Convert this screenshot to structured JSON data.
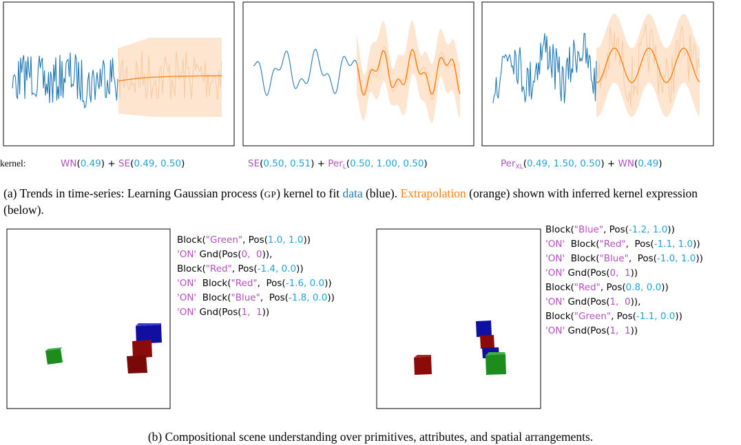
{
  "panel_a": {
    "kernel_label": "kernel:",
    "expressions": [
      [
        {
          "text": "WN",
          "color": "#b44fbf"
        },
        {
          "text": "(",
          "color": "#000000"
        },
        {
          "text": "0.49",
          "color": "#1fa3d8"
        },
        {
          "text": ") + ",
          "color": "#000000"
        },
        {
          "text": "SE",
          "color": "#b44fbf"
        },
        {
          "text": "(",
          "color": "#000000"
        },
        {
          "text": "0.49, 0.50",
          "color": "#1fa3d8"
        },
        {
          "text": ")",
          "color": "#000000"
        }
      ],
      [
        {
          "text": "SE",
          "color": "#b44fbf"
        },
        {
          "text": "(",
          "color": "#000000"
        },
        {
          "text": "0.50, 0.51",
          "color": "#1fa3d8"
        },
        {
          "text": ") + ",
          "color": "#000000"
        },
        {
          "text": "Per",
          "color": "#b44fbf"
        },
        {
          "text": "L",
          "color": "#b44fbf",
          "sub": true
        },
        {
          "text": "(",
          "color": "#000000"
        },
        {
          "text": "0.50, 1.00, 0.50",
          "color": "#1fa3d8"
        },
        {
          "text": ")",
          "color": "#000000"
        }
      ],
      [
        {
          "text": "Per",
          "color": "#b44fbf"
        },
        {
          "text": "XL",
          "color": "#b44fbf",
          "sub": true
        },
        {
          "text": "(",
          "color": "#000000"
        },
        {
          "text": "0.49, 1.50, 0.50",
          "color": "#1fa3d8"
        },
        {
          "text": ") + ",
          "color": "#000000"
        },
        {
          "text": "WN",
          "color": "#b44fbf"
        },
        {
          "text": "(",
          "color": "#000000"
        },
        {
          "text": "0.49",
          "color": "#1fa3d8"
        },
        {
          "text": ")",
          "color": "#000000"
        }
      ]
    ],
    "caption": [
      {
        "text": "(a) Trends in time-series: Learning Gaussian process (",
        "color": "#000000"
      },
      {
        "text": "GP",
        "color": "#000000",
        "small": true
      },
      {
        "text": ") kernel to fit ",
        "color": "#000000"
      },
      {
        "text": "data",
        "color": "#1f77b4"
      },
      {
        "text": " (blue). ",
        "color": "#000000"
      },
      {
        "text": "Extrapolation",
        "color": "#ff7f0e"
      },
      {
        "text": " (orange) shown with inferred kernel expression (below).",
        "color": "#000000"
      }
    ]
  },
  "panel_b": {
    "programs": [
      [
        [
          {
            "text": "Block(",
            "color": "#000000"
          },
          {
            "text": "\"Green\"",
            "color": "#b44fbf"
          },
          {
            "text": ", Pos(",
            "color": "#000000"
          },
          {
            "text": "1.0, 1.0",
            "color": "#1fa3d8"
          },
          {
            "text": "))",
            "color": "#000000"
          }
        ],
        [
          {
            "text": "'ON'",
            "color": "#b44fbf"
          },
          {
            "text": " Gnd(Pos(",
            "color": "#000000"
          },
          {
            "text": "0,  0",
            "color": "#b44fbf"
          },
          {
            "text": ")),",
            "color": "#000000"
          }
        ],
        [
          {
            "text": "Block(",
            "color": "#000000"
          },
          {
            "text": "\"Red\"",
            "color": "#b44fbf"
          },
          {
            "text": ", Pos(",
            "color": "#000000"
          },
          {
            "text": "-1.4, 0.0",
            "color": "#1fa3d8"
          },
          {
            "text": "))",
            "color": "#000000"
          }
        ],
        [
          {
            "text": "'ON'",
            "color": "#b44fbf"
          },
          {
            "text": "  Block(",
            "color": "#000000"
          },
          {
            "text": "\"Red\"",
            "color": "#b44fbf"
          },
          {
            "text": ",  Pos(",
            "color": "#000000"
          },
          {
            "text": "-1.6, 0.0",
            "color": "#1fa3d8"
          },
          {
            "text": "))",
            "color": "#000000"
          }
        ],
        [
          {
            "text": "'ON'",
            "color": "#b44fbf"
          },
          {
            "text": "  Block(",
            "color": "#000000"
          },
          {
            "text": "\"Blue\"",
            "color": "#b44fbf"
          },
          {
            "text": ",  Pos(",
            "color": "#000000"
          },
          {
            "text": "-1.8, 0.0",
            "color": "#1fa3d8"
          },
          {
            "text": "))",
            "color": "#000000"
          }
        ],
        [
          {
            "text": "'ON'",
            "color": "#b44fbf"
          },
          {
            "text": " Gnd(Pos(",
            "color": "#000000"
          },
          {
            "text": "1,  1",
            "color": "#b44fbf"
          },
          {
            "text": "))",
            "color": "#000000"
          }
        ]
      ],
      [
        [
          {
            "text": "Block(",
            "color": "#000000"
          },
          {
            "text": "\"Blue\"",
            "color": "#b44fbf"
          },
          {
            "text": ", Pos(",
            "color": "#000000"
          },
          {
            "text": "-1.2, 1.0",
            "color": "#1fa3d8"
          },
          {
            "text": "))",
            "color": "#000000"
          }
        ],
        [
          {
            "text": "'ON'",
            "color": "#b44fbf"
          },
          {
            "text": "  Block(",
            "color": "#000000"
          },
          {
            "text": "\"Red\"",
            "color": "#b44fbf"
          },
          {
            "text": ",  Pos(",
            "color": "#000000"
          },
          {
            "text": "-1.1, 1.0",
            "color": "#1fa3d8"
          },
          {
            "text": "))",
            "color": "#000000"
          }
        ],
        [
          {
            "text": "'ON'",
            "color": "#b44fbf"
          },
          {
            "text": "  Block(",
            "color": "#000000"
          },
          {
            "text": "\"Blue\"",
            "color": "#b44fbf"
          },
          {
            "text": ",  Pos(",
            "color": "#000000"
          },
          {
            "text": "-1.0, 1.0",
            "color": "#1fa3d8"
          },
          {
            "text": "))",
            "color": "#000000"
          }
        ],
        [
          {
            "text": "'ON'",
            "color": "#b44fbf"
          },
          {
            "text": " Gnd(Pos(",
            "color": "#000000"
          },
          {
            "text": "0,  1",
            "color": "#b44fbf"
          },
          {
            "text": "))",
            "color": "#000000"
          }
        ],
        [
          {
            "text": "Block(",
            "color": "#000000"
          },
          {
            "text": "\"Red\"",
            "color": "#b44fbf"
          },
          {
            "text": ", Pos(",
            "color": "#000000"
          },
          {
            "text": "0.8, 0.0",
            "color": "#1fa3d8"
          },
          {
            "text": "))",
            "color": "#000000"
          }
        ],
        [
          {
            "text": "'ON'",
            "color": "#b44fbf"
          },
          {
            "text": " Gnd(Pos(",
            "color": "#000000"
          },
          {
            "text": "1,  0",
            "color": "#b44fbf"
          },
          {
            "text": ")),",
            "color": "#000000"
          }
        ],
        [
          {
            "text": "Block(",
            "color": "#000000"
          },
          {
            "text": "\"Green\"",
            "color": "#b44fbf"
          },
          {
            "text": ", Pos(",
            "color": "#000000"
          },
          {
            "text": "-1.1, 0.0",
            "color": "#1fa3d8"
          },
          {
            "text": "))",
            "color": "#000000"
          }
        ],
        [
          {
            "text": "'ON'",
            "color": "#b44fbf"
          },
          {
            "text": " Gnd(Pos(",
            "color": "#000000"
          },
          {
            "text": "1,  1",
            "color": "#b44fbf"
          },
          {
            "text": "))",
            "color": "#000000"
          }
        ]
      ]
    ],
    "caption": "(b) Compositional scene understanding over primitives, attributes, and spatial arrangements."
  }
}
